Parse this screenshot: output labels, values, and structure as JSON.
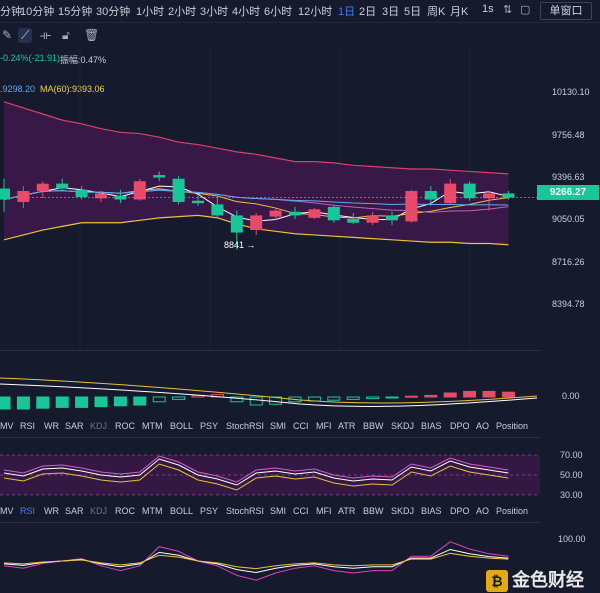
{
  "timeframes": [
    "分钟",
    "10分钟",
    "15分钟",
    "30分钟",
    "1小时",
    "2小时",
    "3小时",
    "4小时",
    "6小时",
    "12小时",
    "1日",
    "2日",
    "3日",
    "5日",
    "周K",
    "月K",
    "1s"
  ],
  "active_timeframe": "1日",
  "window_mode_label": "单窗口",
  "toolbar_icons": [
    "pen-icon",
    "line-draw-icon",
    "bracket-icon",
    "lock-icon",
    "trash-icon"
  ],
  "info_line1": {
    "change": "-0.24%(-21.91)",
    "amplitude": "振幅:0.47%"
  },
  "info_line2": {
    "ma_partial": ".9298.20",
    "ma60": "MA(60):9393.06"
  },
  "current_price": "9266.27",
  "low_annotation": "8841 →",
  "price_axis_labels": [
    "10130.10",
    "9756.48",
    "9396.63",
    "9050.05",
    "8716.26",
    "8394.78"
  ],
  "macd_axis_label": "0.00",
  "rsi_axis_labels": [
    "70.00",
    "50.00",
    "30.00"
  ],
  "kdj_axis_label": "100.00",
  "indicator_tabs": [
    "MV",
    "RSI",
    "WR",
    "SAR",
    "KDJ",
    "ROC",
    "MTM",
    "BOLL",
    "PSY",
    "StochRSI",
    "SMI",
    "CCI",
    "MFI",
    "ATR",
    "BBW",
    "SKDJ",
    "BIAS",
    "DPO",
    "AO",
    "Position"
  ],
  "logo_text": "金色财经",
  "colors": {
    "up": "#e84a6a",
    "down": "#17c79a",
    "band": "#3a1848",
    "active": "#3d7ff5"
  },
  "chart_data": {
    "type": "candlestick",
    "y_axis_ticks": [
      10130.1,
      9756.48,
      9396.63,
      9050.05,
      8716.26,
      8394.78
    ],
    "candles": [
      {
        "o": 9340,
        "h": 9420,
        "l": 9150,
        "c": 9250,
        "d": "down"
      },
      {
        "o": 9230,
        "h": 9360,
        "l": 9180,
        "c": 9320,
        "d": "up"
      },
      {
        "o": 9320,
        "h": 9400,
        "l": 9260,
        "c": 9380,
        "d": "up"
      },
      {
        "o": 9380,
        "h": 9420,
        "l": 9320,
        "c": 9340,
        "d": "down"
      },
      {
        "o": 9330,
        "h": 9360,
        "l": 9250,
        "c": 9270,
        "d": "down"
      },
      {
        "o": 9260,
        "h": 9320,
        "l": 9230,
        "c": 9300,
        "d": "up"
      },
      {
        "o": 9280,
        "h": 9330,
        "l": 9220,
        "c": 9250,
        "d": "down"
      },
      {
        "o": 9250,
        "h": 9420,
        "l": 9240,
        "c": 9400,
        "d": "up"
      },
      {
        "o": 9450,
        "h": 9480,
        "l": 9400,
        "c": 9430,
        "d": "down"
      },
      {
        "o": 9420,
        "h": 9440,
        "l": 9210,
        "c": 9230,
        "d": "down"
      },
      {
        "o": 9240,
        "h": 9280,
        "l": 9200,
        "c": 9220,
        "d": "down"
      },
      {
        "o": 9210,
        "h": 9280,
        "l": 9100,
        "c": 9120,
        "d": "down"
      },
      {
        "o": 9120,
        "h": 9160,
        "l": 8841,
        "c": 8980,
        "d": "down"
      },
      {
        "o": 9000,
        "h": 9140,
        "l": 8960,
        "c": 9120,
        "d": "up"
      },
      {
        "o": 9110,
        "h": 9180,
        "l": 9080,
        "c": 9160,
        "d": "up"
      },
      {
        "o": 9150,
        "h": 9190,
        "l": 9090,
        "c": 9120,
        "d": "down"
      },
      {
        "o": 9100,
        "h": 9180,
        "l": 9090,
        "c": 9170,
        "d": "up"
      },
      {
        "o": 9190,
        "h": 9200,
        "l": 9060,
        "c": 9080,
        "d": "down"
      },
      {
        "o": 9090,
        "h": 9140,
        "l": 9050,
        "c": 9060,
        "d": "down"
      },
      {
        "o": 9060,
        "h": 9150,
        "l": 9040,
        "c": 9120,
        "d": "up"
      },
      {
        "o": 9120,
        "h": 9150,
        "l": 9040,
        "c": 9080,
        "d": "down"
      },
      {
        "o": 9070,
        "h": 9330,
        "l": 9060,
        "c": 9320,
        "d": "up"
      },
      {
        "o": 9320,
        "h": 9360,
        "l": 9200,
        "c": 9250,
        "d": "down"
      },
      {
        "o": 9220,
        "h": 9420,
        "l": 9210,
        "c": 9380,
        "d": "up"
      },
      {
        "o": 9380,
        "h": 9400,
        "l": 9240,
        "c": 9260,
        "d": "down"
      },
      {
        "o": 9260,
        "h": 9320,
        "l": 9160,
        "c": 9300,
        "d": "up"
      },
      {
        "o": 9300,
        "h": 9320,
        "l": 9250,
        "c": 9266,
        "d": "down"
      }
    ],
    "bands": {
      "upper": [
        10050,
        10000,
        9950,
        9900,
        9870,
        9830,
        9800,
        9790,
        9760,
        9720,
        9700,
        9670,
        9640,
        9620,
        9590,
        9560,
        9560,
        9550,
        9530,
        9520,
        9510,
        9500,
        9500,
        9490,
        9480,
        9470,
        9460
      ],
      "lower": [
        8920,
        8960,
        9000,
        9030,
        9060,
        9060,
        9060,
        9080,
        9100,
        9110,
        9120,
        9100,
        9050,
        9010,
        8990,
        8970,
        8960,
        8950,
        8940,
        8930,
        8920,
        8910,
        8900,
        8900,
        8890,
        8890,
        8880
      ]
    },
    "macd_histogram": [
      -1.5,
      -1.5,
      -1.4,
      -1.3,
      -1.3,
      -1.2,
      -1.1,
      -1.0,
      -0.6,
      -0.3,
      0.2,
      0.3,
      -0.6,
      -1.0,
      -0.9,
      -0.6,
      -0.5,
      -0.4,
      -0.3,
      -0.2,
      -0.1,
      0.1,
      0.2,
      0.5,
      0.7,
      0.7,
      0.6
    ],
    "rsi": [
      52,
      49,
      56,
      57,
      54,
      50,
      48,
      50,
      66,
      60,
      50,
      46,
      40,
      52,
      54,
      51,
      53,
      47,
      44,
      46,
      45,
      58,
      54,
      64,
      58,
      55,
      52
    ],
    "kdj": [
      40,
      35,
      45,
      50,
      55,
      40,
      30,
      40,
      80,
      70,
      50,
      40,
      20,
      10,
      25,
      35,
      40,
      30,
      25,
      30,
      30,
      60,
      60,
      90,
      75,
      65,
      60
    ]
  }
}
